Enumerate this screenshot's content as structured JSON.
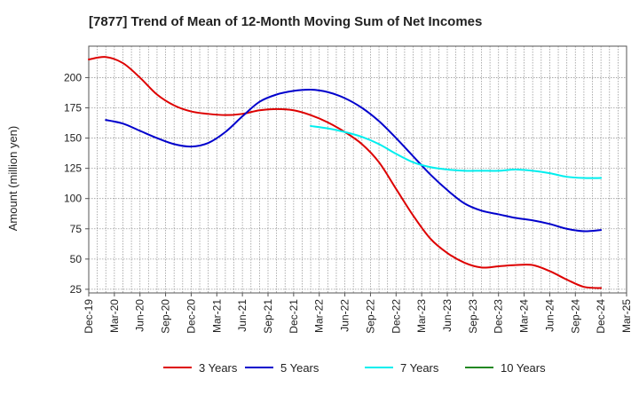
{
  "chart_data": {
    "type": "line",
    "title": "[7877]  Trend of Mean of 12-Month Moving Sum of Net Incomes",
    "xlabel": "",
    "ylabel": "Amount (million yen)",
    "ylim": [
      22,
      226
    ],
    "yticks": [
      25,
      50,
      75,
      100,
      125,
      150,
      175,
      200
    ],
    "xlim": [
      0,
      63
    ],
    "xticks": [
      {
        "label": "Dec-19",
        "pos": 0
      },
      {
        "label": "Mar-20",
        "pos": 3
      },
      {
        "label": "Jun-20",
        "pos": 6
      },
      {
        "label": "Sep-20",
        "pos": 9
      },
      {
        "label": "Dec-20",
        "pos": 12
      },
      {
        "label": "Mar-21",
        "pos": 15
      },
      {
        "label": "Jun-21",
        "pos": 18
      },
      {
        "label": "Sep-21",
        "pos": 21
      },
      {
        "label": "Dec-21",
        "pos": 24
      },
      {
        "label": "Mar-22",
        "pos": 27
      },
      {
        "label": "Jun-22",
        "pos": 30
      },
      {
        "label": "Sep-22",
        "pos": 33
      },
      {
        "label": "Dec-22",
        "pos": 36
      },
      {
        "label": "Mar-23",
        "pos": 39
      },
      {
        "label": "Jun-23",
        "pos": 42
      },
      {
        "label": "Sep-23",
        "pos": 45
      },
      {
        "label": "Dec-23",
        "pos": 48
      },
      {
        "label": "Mar-24",
        "pos": 51
      },
      {
        "label": "Jun-24",
        "pos": 54
      },
      {
        "label": "Sep-24",
        "pos": 57
      },
      {
        "label": "Dec-24",
        "pos": 60
      },
      {
        "label": "Mar-25",
        "pos": 63
      }
    ],
    "grid": true,
    "legend_position": "bottom",
    "series": [
      {
        "name": "3 Years",
        "color": "#dd0000",
        "points": [
          [
            0,
            215
          ],
          [
            2,
            217
          ],
          [
            4,
            212
          ],
          [
            6,
            200
          ],
          [
            8,
            186
          ],
          [
            10,
            177
          ],
          [
            12,
            172
          ],
          [
            14,
            170
          ],
          [
            16,
            169
          ],
          [
            18,
            170
          ],
          [
            20,
            173
          ],
          [
            22,
            174
          ],
          [
            24,
            173
          ],
          [
            26,
            169
          ],
          [
            28,
            163
          ],
          [
            30,
            155
          ],
          [
            32,
            145
          ],
          [
            34,
            130
          ],
          [
            36,
            108
          ],
          [
            38,
            86
          ],
          [
            40,
            67
          ],
          [
            42,
            55
          ],
          [
            44,
            47
          ],
          [
            46,
            43
          ],
          [
            48,
            44
          ],
          [
            50,
            45
          ],
          [
            52,
            45
          ],
          [
            54,
            40
          ],
          [
            56,
            33
          ],
          [
            58,
            27
          ],
          [
            60,
            26
          ]
        ]
      },
      {
        "name": "5 Years",
        "color": "#0000cc",
        "points": [
          [
            2,
            165
          ],
          [
            4,
            162
          ],
          [
            6,
            156
          ],
          [
            8,
            150
          ],
          [
            10,
            145
          ],
          [
            12,
            143
          ],
          [
            14,
            146
          ],
          [
            16,
            155
          ],
          [
            18,
            168
          ],
          [
            20,
            180
          ],
          [
            22,
            186
          ],
          [
            24,
            189
          ],
          [
            26,
            190
          ],
          [
            28,
            188
          ],
          [
            30,
            183
          ],
          [
            32,
            175
          ],
          [
            34,
            164
          ],
          [
            36,
            150
          ],
          [
            38,
            135
          ],
          [
            40,
            120
          ],
          [
            42,
            107
          ],
          [
            44,
            96
          ],
          [
            46,
            90
          ],
          [
            48,
            87
          ],
          [
            50,
            84
          ],
          [
            52,
            82
          ],
          [
            54,
            79
          ],
          [
            56,
            75
          ],
          [
            58,
            73
          ],
          [
            60,
            74
          ]
        ]
      },
      {
        "name": "7 Years",
        "color": "#00eeee",
        "points": [
          [
            26,
            160
          ],
          [
            28,
            158
          ],
          [
            30,
            155
          ],
          [
            32,
            151
          ],
          [
            34,
            145
          ],
          [
            36,
            137
          ],
          [
            38,
            130
          ],
          [
            40,
            126
          ],
          [
            42,
            124
          ],
          [
            44,
            123
          ],
          [
            46,
            123
          ],
          [
            48,
            123
          ],
          [
            50,
            124
          ],
          [
            52,
            123
          ],
          [
            54,
            121
          ],
          [
            56,
            118
          ],
          [
            58,
            117
          ],
          [
            60,
            117
          ]
        ]
      },
      {
        "name": "10 Years",
        "color": "#228822",
        "points": []
      }
    ]
  }
}
